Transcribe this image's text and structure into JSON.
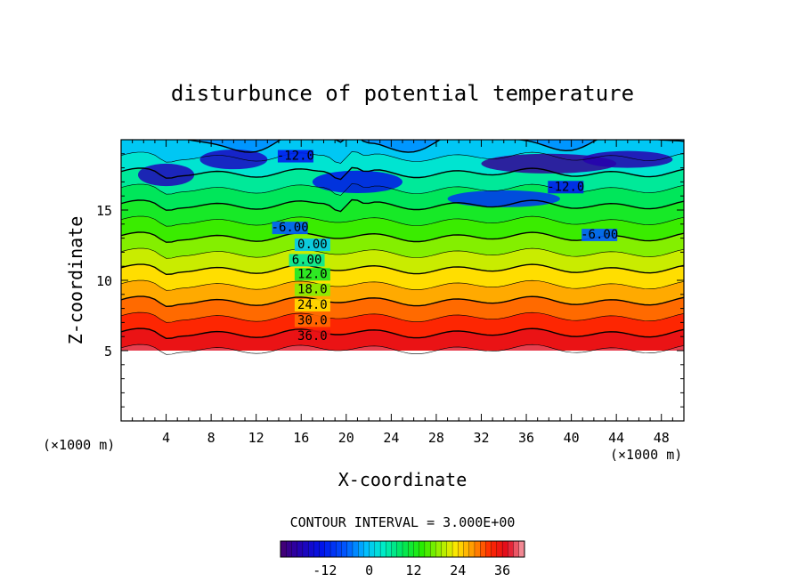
{
  "chart_data": {
    "type": "contour",
    "title": "disturbunce of potential temperature",
    "xlabel": "X-coordinate",
    "ylabel": "Z-coordinate",
    "x_unit_left": "(×1000 m)",
    "x_unit_right": "(×1000 m)",
    "xlim": [
      0,
      50
    ],
    "ylim": [
      0,
      20
    ],
    "x_ticks": [
      4,
      8,
      12,
      16,
      20,
      24,
      28,
      32,
      36,
      40,
      44,
      48
    ],
    "x_tick_labels": [
      "4",
      "8",
      "12",
      "16",
      "20",
      "24",
      "28",
      "32",
      "36",
      "40",
      "44",
      "48"
    ],
    "y_ticks": [
      5,
      10,
      15
    ],
    "y_tick_labels": [
      "5",
      "10",
      "15"
    ],
    "data_bottom_z": 5.0,
    "contour_interval": "CONTOUR INTERVAL = 3.000E+00",
    "contour_labels": [
      {
        "text": "-12.0",
        "x": 15.5,
        "z": 18.7
      },
      {
        "text": "-12.0",
        "x": 39.5,
        "z": 16.5
      },
      {
        "text": "-6.00",
        "x": 15.0,
        "z": 13.6
      },
      {
        "text": "-6.00",
        "x": 42.5,
        "z": 13.1
      },
      {
        "text": "0.00",
        "x": 17.0,
        "z": 12.4
      },
      {
        "text": "6.00",
        "x": 16.5,
        "z": 11.3
      },
      {
        "text": "12.0",
        "x": 17.0,
        "z": 10.3
      },
      {
        "text": "18.0",
        "x": 17.0,
        "z": 9.2
      },
      {
        "text": "24.0",
        "x": 17.0,
        "z": 8.1
      },
      {
        "text": "30.0",
        "x": 17.0,
        "z": 7.0
      },
      {
        "text": "36.0",
        "x": 17.0,
        "z": 5.9
      }
    ],
    "colorbar": {
      "min": -24,
      "max": 42,
      "tick_values": [
        -12,
        0,
        12,
        24,
        36
      ],
      "tick_labels": [
        "-12",
        "0",
        "12",
        "24",
        "36"
      ]
    },
    "level_values": [
      39,
      36,
      33,
      30,
      27,
      24,
      21,
      18,
      15,
      12,
      9,
      6,
      3,
      0,
      -3,
      -6,
      -9,
      -12
    ]
  }
}
